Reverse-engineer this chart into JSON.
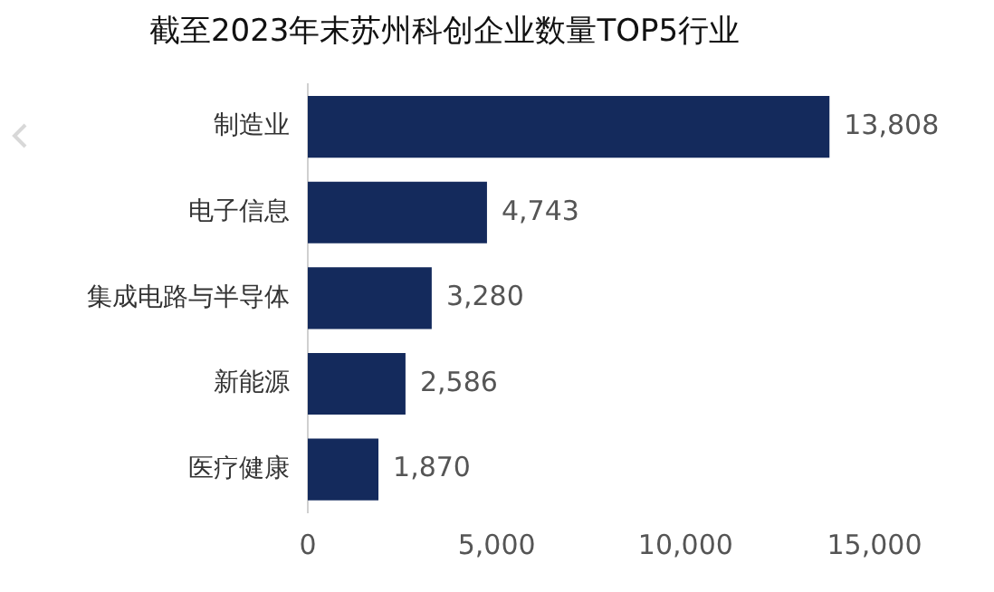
{
  "chart_data": {
    "type": "bar",
    "orientation": "horizontal",
    "title": "截至2023年末苏州科创企业数量TOP5行业",
    "categories": [
      "制造业",
      "电子信息",
      "集成电路与半导体",
      "新能源",
      "医疗健康"
    ],
    "values": [
      13808,
      4743,
      3280,
      2586,
      1870
    ],
    "color": "#142a5c",
    "xlim": [
      0,
      15000
    ],
    "xticks": [
      0,
      {
        "value": 5000,
        "label": "5,000"
      },
      {
        "value": 10000,
        "label": "10,000"
      },
      {
        "value": 15000,
        "label": "15,000"
      }
    ],
    "value_labels": [
      "13,808",
      "4,743",
      "3,280",
      "2,586",
      "1,870"
    ],
    "grid": false,
    "legend": false
  }
}
